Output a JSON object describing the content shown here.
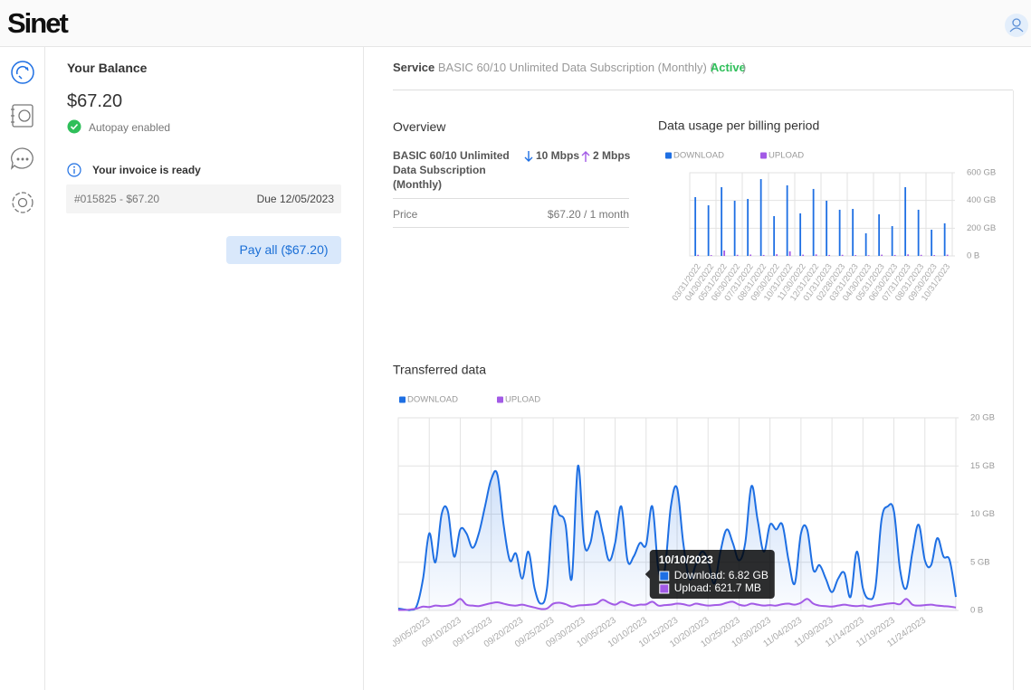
{
  "header": {
    "logo": "Sinet"
  },
  "balance": {
    "title": "Your Balance",
    "amount": "$67.20",
    "autopay": "Autopay enabled",
    "invoice_notice": "Your invoice is ready",
    "invoice": "#015825 - $67.20",
    "due": "Due 12/05/2023",
    "pay_button": "Pay all ($67.20)"
  },
  "service": {
    "label": "Service",
    "plan": "BASIC 60/10 Unlimited Data Subscription (Monthly)",
    "status_open": "(",
    "status": "Active",
    "status_close": ")"
  },
  "overview": {
    "title": "Overview",
    "plan": "BASIC 60/10 Unlimited Data Subscription (Monthly)",
    "download_speed": "10 Mbps",
    "upload_speed": "2 Mbps",
    "price_label": "Price",
    "price": "$67.20 / 1 month"
  },
  "chart_data": [
    {
      "type": "bar",
      "title": "Data usage per billing period",
      "categories": [
        "03/31/2022",
        "04/30/2022",
        "05/31/2022",
        "06/30/2022",
        "07/31/2022",
        "08/31/2022",
        "09/30/2022",
        "10/31/2022",
        "11/30/2022",
        "12/31/2022",
        "01/31/2023",
        "02/28/2023",
        "03/31/2023",
        "04/30/2023",
        "05/31/2023",
        "06/30/2023",
        "07/31/2023",
        "08/31/2023",
        "09/30/2023",
        "10/31/2023"
      ],
      "series": [
        {
          "name": "DOWNLOAD",
          "color": "#1e6fe3",
          "values": [
            424,
            365,
            496,
            398,
            411,
            554,
            287,
            509,
            307,
            483,
            398,
            333,
            339,
            163,
            300,
            215,
            496,
            333,
            189,
            235
          ]
        },
        {
          "name": "UPLOAD",
          "color": "#a25ae6",
          "values": [
            8,
            6,
            39,
            8,
            10,
            7,
            12,
            33,
            9,
            11,
            7,
            8,
            6,
            5,
            9,
            7,
            11,
            8,
            6,
            9
          ]
        }
      ],
      "ylim": [
        0,
        600
      ],
      "yticks": [
        {
          "value": 0,
          "label": "0 B"
        },
        {
          "value": 200,
          "label": "200 GB"
        },
        {
          "value": 400,
          "label": "400 GB"
        },
        {
          "value": 600,
          "label": "600 GB"
        }
      ],
      "grid": true
    },
    {
      "type": "area",
      "title": "Transferred data",
      "categories": [
        null,
        null,
        null,
        null,
        null,
        "09/05/2023",
        null,
        null,
        null,
        null,
        "09/10/2023",
        null,
        null,
        null,
        null,
        "09/15/2023",
        null,
        null,
        null,
        null,
        "09/20/2023",
        null,
        null,
        null,
        null,
        "09/25/2023",
        null,
        null,
        null,
        null,
        "09/30/2023",
        null,
        null,
        null,
        null,
        "10/05/2023",
        null,
        null,
        null,
        null,
        "10/10/2023",
        null,
        null,
        null,
        null,
        "10/15/2023",
        null,
        null,
        null,
        null,
        "10/20/2023",
        null,
        null,
        null,
        null,
        "10/25/2023",
        null,
        null,
        null,
        null,
        "10/30/2023",
        null,
        null,
        null,
        null,
        "11/04/2023",
        null,
        null,
        null,
        null,
        "11/09/2023",
        null,
        null,
        null,
        null,
        "11/14/2023",
        null,
        null,
        null,
        null,
        "11/19/2023",
        null,
        null,
        null,
        null,
        "11/24/2023",
        null,
        null,
        null,
        null,
        null
      ],
      "series": [
        {
          "name": "DOWNLOAD",
          "color": "#1e6fe3",
          "values": [
            0.2,
            0.1,
            0.05,
            0.5,
            3.3,
            8,
            5,
            10,
            10.3,
            5.6,
            8.4,
            8,
            6.5,
            8,
            10.8,
            13.6,
            14.1,
            8.9,
            5.2,
            5.9,
            3.3,
            6.1,
            2.3,
            0.7,
            2.3,
            10.3,
            9.9,
            8.9,
            3.3,
            15,
            7,
            7,
            10.3,
            8,
            5.2,
            7,
            10.8,
            5.2,
            5.6,
            7,
            6.82,
            10.8,
            4.2,
            4.2,
            10.8,
            12.7,
            7,
            3.3,
            4.7,
            6.1,
            5.2,
            2.8,
            6.1,
            8.4,
            7,
            5.2,
            7,
            12.9,
            9.4,
            6.1,
            8.9,
            8.4,
            8.9,
            5.2,
            2.8,
            8,
            8.4,
            4.2,
            4.7,
            3.3,
            1.9,
            3.3,
            3.9,
            1.4,
            6.1,
            2.3,
            1.2,
            2.3,
            9.4,
            10.8,
            10.3,
            4.2,
            2.3,
            6.1,
            8.9,
            5.2,
            4.7,
            7.5,
            5.6,
            5.2,
            1.4
          ]
        },
        {
          "name": "UPLOAD",
          "color": "#a25ae6",
          "values": [
            0.05,
            0.05,
            0.1,
            0.2,
            0.4,
            0.35,
            0.5,
            0.45,
            0.5,
            0.7,
            1.2,
            0.6,
            0.5,
            0.45,
            0.6,
            0.75,
            0.85,
            0.7,
            0.55,
            0.5,
            0.6,
            0.45,
            0.3,
            0.15,
            0.2,
            0.7,
            0.8,
            0.65,
            0.4,
            0.5,
            0.55,
            0.6,
            0.7,
            1.1,
            0.8,
            0.6,
            0.9,
            0.7,
            0.5,
            0.6,
            0.6217,
            0.9,
            0.5,
            0.55,
            0.6,
            0.7,
            0.65,
            0.5,
            0.7,
            0.6,
            0.5,
            0.55,
            0.6,
            0.8,
            0.9,
            0.6,
            0.5,
            0.7,
            0.6,
            0.5,
            0.55,
            0.5,
            0.65,
            0.7,
            0.6,
            0.8,
            1.2,
            0.7,
            0.5,
            0.45,
            0.4,
            0.5,
            0.6,
            0.5,
            0.45,
            0.5,
            0.4,
            0.5,
            0.6,
            0.7,
            0.75,
            0.65,
            1.2,
            0.6,
            0.5,
            0.55,
            0.6,
            0.5,
            0.45,
            0.4,
            0.3
          ]
        }
      ],
      "ylim": [
        0,
        20
      ],
      "yticks": [
        {
          "value": 0,
          "label": "0 B"
        },
        {
          "value": 5,
          "label": "5 GB"
        },
        {
          "value": 10,
          "label": "10 GB"
        },
        {
          "value": 15,
          "label": "15 GB"
        },
        {
          "value": 20,
          "label": "20 GB"
        }
      ],
      "grid": true,
      "tooltip": {
        "title": "10/10/2023",
        "lines": [
          "Download: 6.82 GB",
          "Upload: 621.7 MB"
        ]
      }
    }
  ]
}
